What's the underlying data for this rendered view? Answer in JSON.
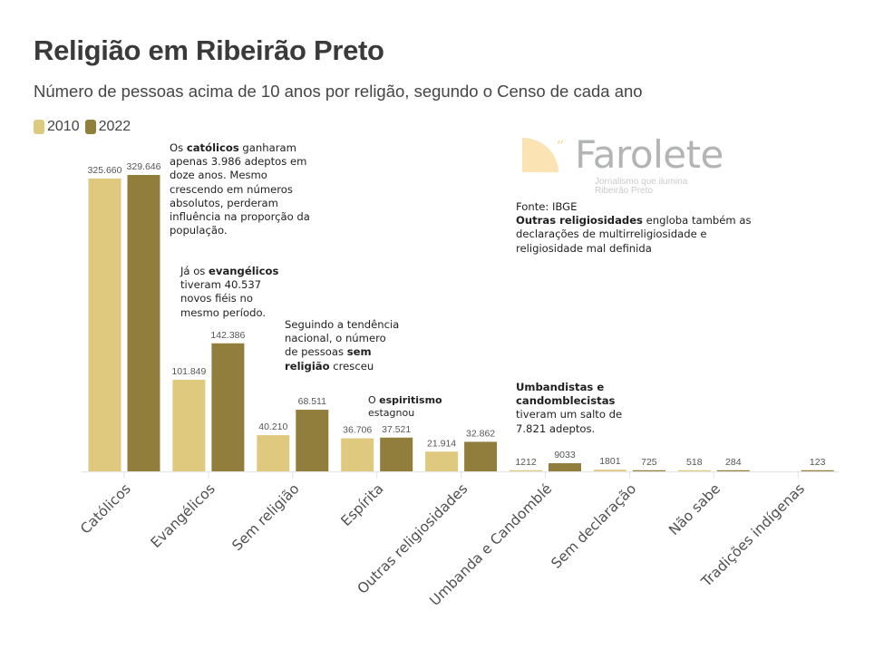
{
  "header": {
    "title": "Religião em Ribeirão Preto",
    "subtitle": "Número de pessoas acima de 10 anos por religão, segundo o Censo de cada ano"
  },
  "legend": [
    {
      "label": "2010",
      "color": "#dfc97f"
    },
    {
      "label": "2022",
      "color": "#917e3d"
    }
  ],
  "logo": {
    "name": "Farolete",
    "tagline_1": "Jornalismo que ilumina",
    "tagline_2": "Ribeirão Preto",
    "accent": "#fbe3b3"
  },
  "notes": {
    "catolicos": {
      "pre": "Os ",
      "bold": "católicos",
      "post": " ganharam apenas 3.986 adeptos em doze anos. Mesmo crescendo em números absolutos, perderam influência na proporção da população."
    },
    "evangelicos": {
      "pre": "Já os ",
      "bold": "evangélicos",
      "post": " tiveram 40.537 novos fiéis no mesmo período."
    },
    "sem_religiao": {
      "pre": "Seguindo a tendência nacional, o número de pessoas ",
      "bold": "sem religião",
      "post": " cresceu"
    },
    "espiritismo": {
      "pre": "O ",
      "bold": "espiritismo",
      "post": " estagnou"
    },
    "umbanda": {
      "bold": "Umbandistas e candomblecistas",
      "post": " tiveram um salto de 7.821 adeptos."
    },
    "fonte": "Fonte: IBGE",
    "outras": {
      "bold": "Outras religiosidades",
      "post": " engloba também as declarações de multirreligiosidade e religiosidade mal definida"
    }
  },
  "chart_data": {
    "type": "bar",
    "title": "Religião em Ribeirão Preto",
    "subtitle": "Número de pessoas acima de 10 anos por religão, segundo o Censo de cada ano",
    "xlabel": "",
    "ylabel": "",
    "ylim": [
      0,
      330000
    ],
    "grid": false,
    "legend_position": "top-left",
    "categories": [
      "Católicos",
      "Evangélicos",
      "Sem religião",
      "Espírita",
      "Outras religiosidades",
      "Umbanda e Candomblé",
      "Sem declaração",
      "Não sabe",
      "Tradições indígenas"
    ],
    "series": [
      {
        "name": "2010",
        "color": "#dfc97f",
        "values": [
          325660,
          101849,
          40210,
          36706,
          21914,
          1212,
          1801,
          518,
          null
        ],
        "labels": [
          "325.660",
          "101.849",
          "40.210",
          "36.706",
          "21.914",
          "1212",
          "1801",
          "518",
          ""
        ]
      },
      {
        "name": "2022",
        "color": "#917e3d",
        "values": [
          329646,
          142386,
          68511,
          37521,
          32862,
          9033,
          725,
          284,
          123
        ],
        "labels": [
          "329.646",
          "142.386",
          "68.511",
          "37.521",
          "32.862",
          "9033",
          "725",
          "284",
          "123"
        ]
      }
    ]
  }
}
